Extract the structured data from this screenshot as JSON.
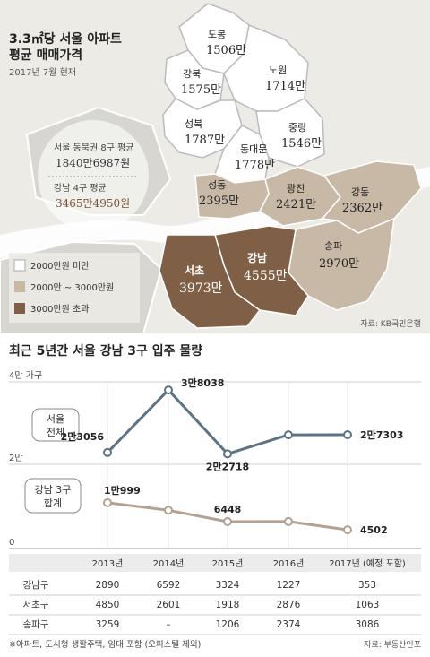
{
  "map": {
    "title_line1": "3.3㎡당 서울 아파트",
    "title_line2": "평균 매매가격",
    "date": "2017년 7월 현재",
    "source": "자료: KB국민은행",
    "circle": {
      "line1_label": "서울 동북권 8구 평균",
      "line1_value": "1840만6987원",
      "line2_label": "강남 4구 평균",
      "line2_value": "3465만4950원"
    },
    "legend": [
      {
        "label": "2000만원 미만",
        "color": "#ffffff"
      },
      {
        "label": "2000만 ~ 3000만원",
        "color": "#c8b8a6"
      },
      {
        "label": "3000만원 초과",
        "color": "#7f5f45"
      }
    ],
    "districts": [
      {
        "name": "도봉",
        "value": "1506만"
      },
      {
        "name": "강북",
        "value": "1575만"
      },
      {
        "name": "노원",
        "value": "1714만"
      },
      {
        "name": "성북",
        "value": "1787만"
      },
      {
        "name": "중랑",
        "value": "1546만"
      },
      {
        "name": "동대문",
        "value": "1778만"
      },
      {
        "name": "성동",
        "value": "2395만"
      },
      {
        "name": "광진",
        "value": "2421만"
      },
      {
        "name": "강동",
        "value": "2362만"
      },
      {
        "name": "송파",
        "value": "2970만"
      },
      {
        "name": "강남",
        "value": "4555만"
      },
      {
        "name": "서초",
        "value": "3973만"
      }
    ]
  },
  "supply": {
    "title": "최근 5년간 서울 강남 3구 입주 물량",
    "y_top_label": "4만 가구",
    "y_mid_label": "2만",
    "y_zero_label": "0",
    "series_label_seoul": [
      "서울",
      "전체"
    ],
    "series_label_gangnam": [
      "강남 3구",
      "합계"
    ],
    "point_labels_seoul": [
      "2만3056",
      "3만8038",
      "2만2718",
      "",
      "2만7303"
    ],
    "point_labels_gangnam": [
      "1만999",
      "",
      "6448",
      "",
      "4502"
    ],
    "table": {
      "headers": [
        "",
        "2013년",
        "2014년",
        "2015년",
        "2016년",
        "2017년 (예정 포함)"
      ],
      "rows": [
        [
          "강남구",
          "2890",
          "6592",
          "3324",
          "1227",
          "353"
        ],
        [
          "서초구",
          "4850",
          "2601",
          "1918",
          "2876",
          "1063"
        ],
        [
          "송파구",
          "3259",
          "–",
          "1206",
          "2374",
          "3086"
        ]
      ]
    },
    "footnote": "※아파트, 도시형 생활주택, 임대 포함 (오피스텔 제외)",
    "source": "자료: 부동산인포"
  },
  "chart_data": [
    {
      "type": "line",
      "title": "최근 5년간 서울 강남 3구 입주 물량",
      "x": [
        "2013년",
        "2014년",
        "2015년",
        "2016년",
        "2017년 (예정 포함)"
      ],
      "ylim": [
        0,
        40000
      ],
      "ylabel": "4만 가구",
      "series": [
        {
          "name": "서울 전체",
          "values": [
            23056,
            38038,
            22718,
            27300,
            27303
          ],
          "color": "#5c7384"
        },
        {
          "name": "강남 3구 합계",
          "values": [
            10999,
            9193,
            6448,
            6477,
            4502
          ],
          "color": "#b3a192"
        }
      ]
    }
  ]
}
